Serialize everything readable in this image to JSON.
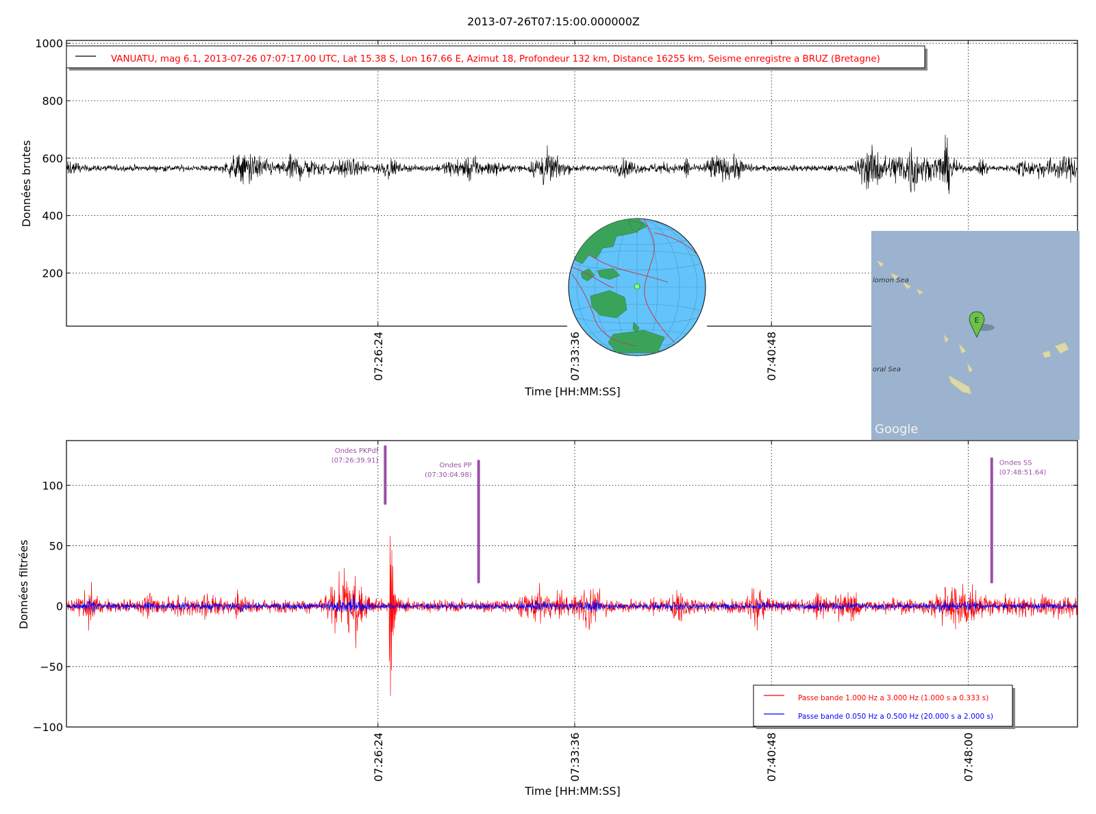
{
  "figure": {
    "title": "2013-07-26T07:15:00.000000Z"
  },
  "chart_data": [
    {
      "type": "line",
      "panel": "raw",
      "ylabel": "Données brutes",
      "xlabel": "Time [HH:MM:SS]",
      "xlim": [
        "07:15:00",
        "07:52:00"
      ],
      "ylim": [
        15,
        1010
      ],
      "yticks": [
        200,
        400,
        600,
        800,
        1000
      ],
      "xticks": [
        "07:26:24",
        "07:33:36",
        "07:40:48",
        "07:48:00"
      ],
      "grid": true,
      "legend_position": "top-left",
      "series": [
        {
          "name": "VANUATU, mag 6.1, 2013-07-26 07:07:17.00 UTC, Lat 15.38 S, Lon 167.66 E, Azimut 18, Profondeur 132 km, Distance 16255 km, Seisme enregistre a BRUZ (Bretagne)",
          "color": "#000000",
          "baseline": 565,
          "noise_amplitude": 18,
          "max": 700,
          "min": 405
        }
      ]
    },
    {
      "type": "line",
      "panel": "filtered",
      "ylabel": "Données filtrées",
      "xlabel": "Time [HH:MM:SS]",
      "xlim": [
        "07:15:00",
        "07:52:00"
      ],
      "ylim": [
        -100,
        137
      ],
      "yticks": [
        -100,
        -50,
        0,
        50,
        100
      ],
      "ytick_labels": [
        "−100",
        "−50",
        "0",
        "50",
        "100"
      ],
      "xticks": [
        "07:26:24",
        "07:33:36",
        "07:40:48",
        "07:48:00"
      ],
      "grid": true,
      "legend_position": "bottom-right",
      "series": [
        {
          "name": "Passe bande 1.000 Hz a 3.000 Hz (1.000 s a 0.333 s)",
          "color": "#ff0000",
          "noise_amplitude": 9,
          "peak_max": 81,
          "peak_min": -80,
          "peak_time": "07:26:52"
        },
        {
          "name": "Passe bande 0.050 Hz a 0.500 Hz (20.000 s a 2.000 s)",
          "color": "#0000ff",
          "noise_amplitude": 4
        }
      ],
      "annotations": [
        {
          "label": "Ondes PKPdf",
          "time_label": "(07:26:39.91)",
          "time": "07:26:39.91",
          "y_top": 132,
          "y_bottom": 85,
          "color": "#9b4fa8"
        },
        {
          "label": "Ondes PP",
          "time_label": "(07:30:04.98)",
          "time": "07:30:04.98",
          "y_top": 120,
          "y_bottom": 20,
          "color": "#9b4fa8"
        },
        {
          "label": "Ondes SS",
          "time_label": "(07:48:51.64)",
          "time": "07:48:51.64",
          "y_top": 122,
          "y_bottom": 20,
          "color": "#9b4fa8"
        }
      ]
    }
  ],
  "inset_globe": {
    "ocean_color": "#62c4fa",
    "land_color": "#3aa35a",
    "plate_boundary_color": "#c23a50"
  },
  "inset_map": {
    "background_color": "#9cb3cf",
    "labels": [
      "lomon Sea",
      "oral Sea"
    ],
    "marker_label": "E",
    "marker_color": "#6dc14a",
    "attribution": "Google"
  }
}
